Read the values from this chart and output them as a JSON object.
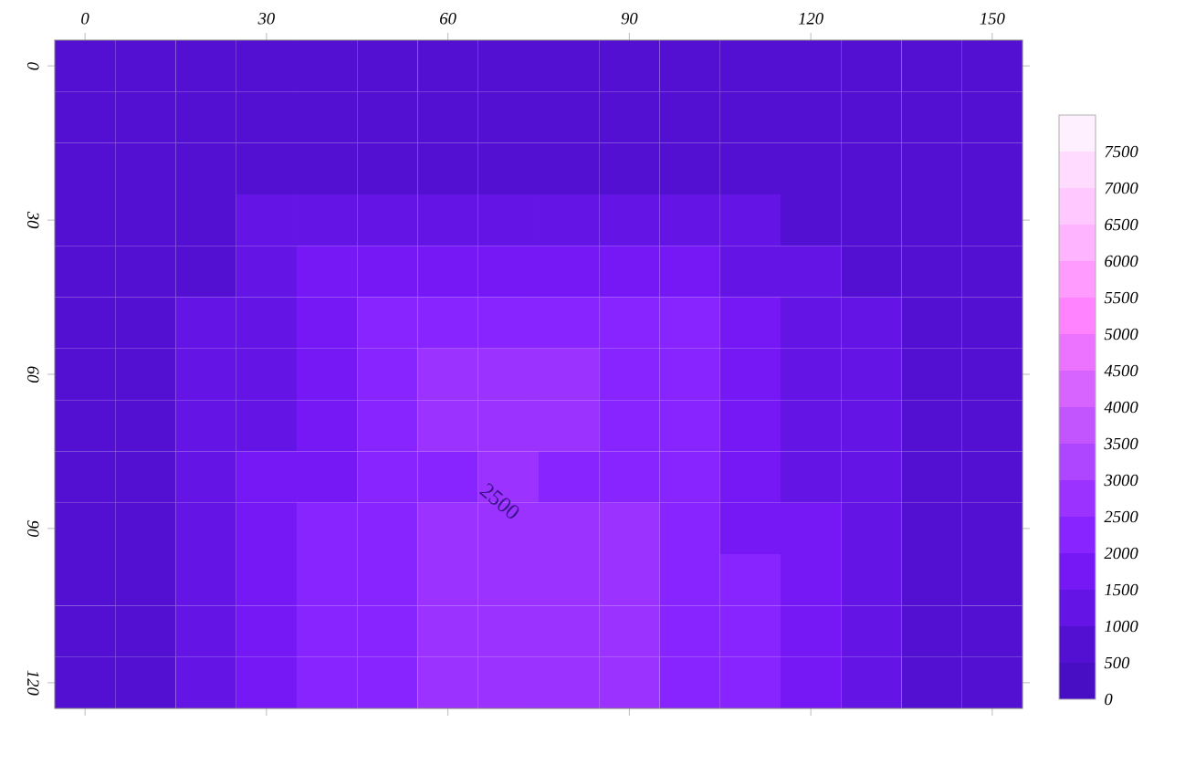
{
  "chart_data": {
    "type": "heatmap",
    "categories": [
      "0",
      null,
      null,
      "30",
      null,
      null,
      "60",
      null,
      null,
      "90",
      null,
      null,
      "120",
      null,
      null,
      "150"
    ],
    "y_categories": [
      "0",
      null,
      null,
      "30",
      null,
      null,
      "60",
      null,
      null,
      "90",
      null,
      null,
      "120"
    ],
    "clim": [
      0,
      8000
    ],
    "cticks": [
      0,
      500,
      1000,
      1500,
      2000,
      2500,
      3000,
      3500,
      4000,
      4500,
      5000,
      5500,
      6000,
      6500,
      7000,
      7500
    ],
    "annotations": [
      "2500"
    ],
    "cells": [
      [
        750,
        750,
        750,
        750,
        750,
        750,
        750,
        750,
        750,
        750,
        750,
        750,
        750,
        750,
        750,
        750
      ],
      [
        750,
        750,
        750,
        750,
        750,
        750,
        750,
        750,
        750,
        750,
        750,
        750,
        750,
        750,
        750,
        750
      ],
      [
        750,
        750,
        750,
        750,
        750,
        750,
        750,
        750,
        750,
        750,
        750,
        750,
        750,
        750,
        750,
        750
      ],
      [
        750,
        750,
        750,
        1250,
        1250,
        1250,
        1250,
        1250,
        1250,
        1250,
        1250,
        1250,
        750,
        750,
        750,
        750
      ],
      [
        750,
        750,
        750,
        1250,
        1750,
        1750,
        1750,
        1750,
        1750,
        1750,
        1750,
        1250,
        1250,
        750,
        750,
        750
      ],
      [
        750,
        750,
        1250,
        1250,
        1750,
        2250,
        2250,
        2250,
        2250,
        2250,
        2250,
        1750,
        1250,
        1250,
        750,
        750
      ],
      [
        750,
        750,
        1250,
        1250,
        1750,
        2250,
        2750,
        2750,
        2750,
        2250,
        2250,
        1750,
        1250,
        1250,
        750,
        750
      ],
      [
        750,
        750,
        1250,
        1250,
        1750,
        2250,
        2750,
        2750,
        2750,
        2250,
        2250,
        1750,
        1250,
        1250,
        750,
        750
      ],
      [
        750,
        750,
        1250,
        1750,
        1750,
        2250,
        2250,
        2750,
        2250,
        2250,
        2250,
        1750,
        1250,
        1250,
        750,
        750
      ],
      [
        750,
        750,
        1250,
        1750,
        2250,
        2250,
        2750,
        2750,
        2750,
        2750,
        2250,
        1750,
        1750,
        1250,
        750,
        750
      ],
      [
        750,
        750,
        1250,
        1750,
        2250,
        2250,
        2750,
        2750,
        2750,
        2750,
        2250,
        2250,
        1750,
        1250,
        750,
        750
      ],
      [
        750,
        750,
        1250,
        1750,
        2250,
        2250,
        2750,
        2750,
        2750,
        2750,
        2250,
        2250,
        1750,
        1250,
        750,
        750
      ],
      [
        750,
        750,
        1250,
        1750,
        2250,
        2250,
        2750,
        2750,
        2750,
        2750,
        2250,
        2250,
        1750,
        1250,
        750,
        750
      ]
    ]
  }
}
